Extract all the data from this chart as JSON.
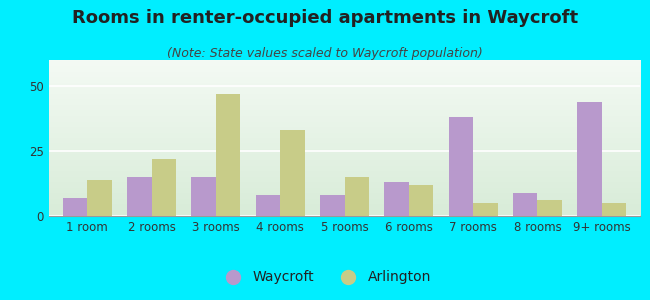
{
  "title": "Rooms in renter-occupied apartments in Waycroft",
  "subtitle": "(Note: State values scaled to Waycroft population)",
  "categories": [
    "1 room",
    "2 rooms",
    "3 rooms",
    "4 rooms",
    "5 rooms",
    "6 rooms",
    "7 rooms",
    "8 rooms",
    "9+ rooms"
  ],
  "waycroft_values": [
    7,
    15,
    15,
    8,
    8,
    13,
    38,
    9,
    44
  ],
  "arlington_values": [
    14,
    22,
    47,
    33,
    15,
    12,
    5,
    6,
    5
  ],
  "waycroft_color": "#b899cc",
  "arlington_color": "#c8cc88",
  "background_outer": "#00eeff",
  "ylim": [
    0,
    60
  ],
  "yticks": [
    0,
    25,
    50
  ],
  "bar_width": 0.38,
  "legend_labels": [
    "Waycroft",
    "Arlington"
  ],
  "title_fontsize": 13,
  "subtitle_fontsize": 9,
  "tick_fontsize": 8.5,
  "legend_fontsize": 10
}
